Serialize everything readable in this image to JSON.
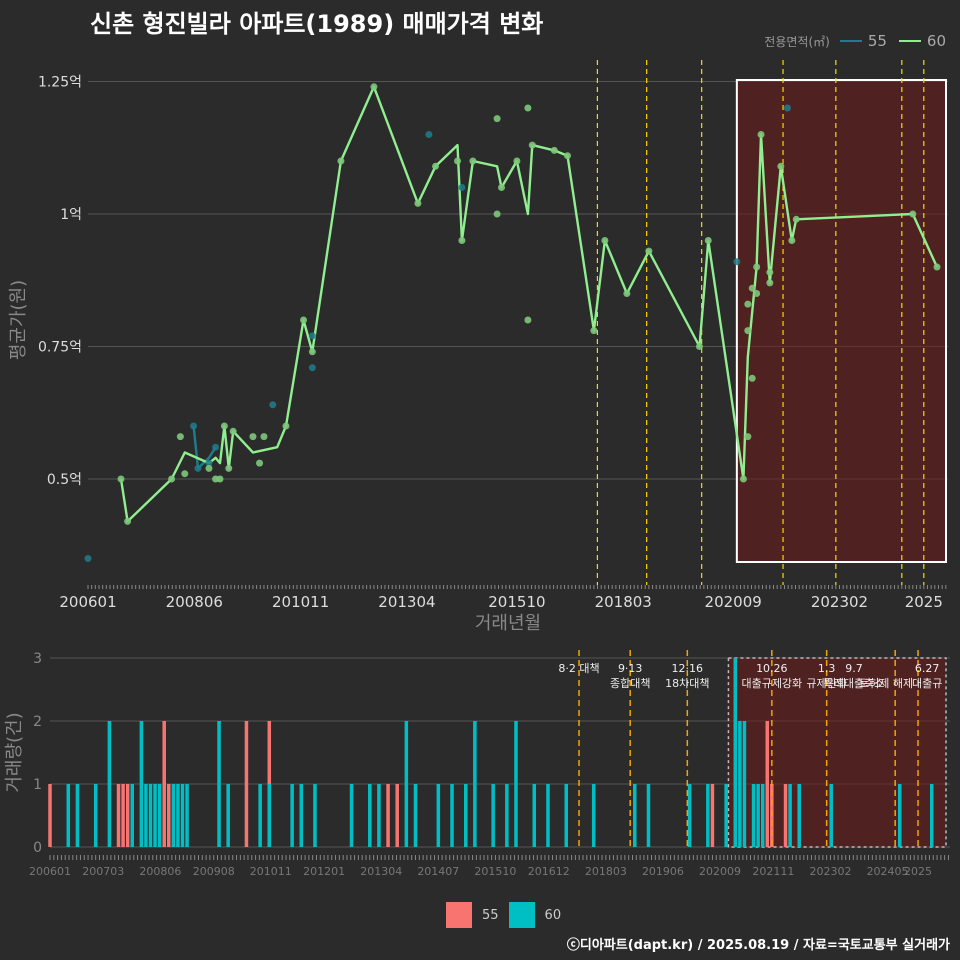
{
  "title": "신촌 형진빌라 아파트(1989) 매매가격 변화",
  "caption": "ⓒ디아파트(dapt.kr) / 2025.08.19 / 자료=국토교통부 실거래가",
  "colors": {
    "s55_line": "#1e7d8c",
    "s60_line": "#90ee90",
    "s55_bar": "#f87471",
    "s60_bar": "#00bfc4",
    "policy": "#ffd700",
    "policy_bar": "#f0a500"
  },
  "chart_data": [
    {
      "type": "line",
      "title": "신촌 형진빌라 아파트(1989) 매매가격 변화",
      "xlabel": "거래년월",
      "ylabel": "평균가(원)",
      "x_ticks": [
        "200601",
        "200806",
        "201011",
        "201304",
        "201510",
        "201803",
        "202009",
        "202302",
        "2025"
      ],
      "y_ticks": [
        {
          "v": 0.5,
          "label": "0.5억"
        },
        {
          "v": 0.75,
          "label": "0.75억"
        },
        {
          "v": 1.0,
          "label": "1억"
        },
        {
          "v": 1.25,
          "label": "1.25억"
        }
      ],
      "ylim": [
        0.3,
        1.3
      ],
      "legend_title": "전용면적(㎡)",
      "legend": [
        "55",
        "60"
      ],
      "series": [
        {
          "name": "55",
          "line": [
            [
              2008.4,
              0.6
            ],
            [
              2008.5,
              0.52
            ],
            [
              2008.75,
              0.54
            ],
            [
              2008.9,
              0.56
            ]
          ],
          "points": [
            [
              2006.0,
              0.35
            ],
            [
              2008.4,
              0.6
            ],
            [
              2008.5,
              0.52
            ],
            [
              2008.75,
              0.53
            ],
            [
              2008.9,
              0.56
            ],
            [
              2010.2,
              0.64
            ],
            [
              2011.1,
              0.71
            ],
            [
              2011.1,
              0.77
            ],
            [
              2013.75,
              1.15
            ],
            [
              2014.5,
              1.05
            ],
            [
              2021.9,
              1.2
            ],
            [
              2020.75,
              0.91
            ]
          ]
        },
        {
          "name": "60",
          "line": [
            [
              2006.75,
              0.5
            ],
            [
              2006.9,
              0.42
            ],
            [
              2007.9,
              0.5
            ],
            [
              2008.2,
              0.55
            ],
            [
              2008.75,
              0.53
            ],
            [
              2008.9,
              0.54
            ],
            [
              2009.0,
              0.53
            ],
            [
              2009.1,
              0.6
            ],
            [
              2009.2,
              0.52
            ],
            [
              2009.3,
              0.59
            ],
            [
              2009.75,
              0.55
            ],
            [
              2010.3,
              0.56
            ],
            [
              2010.5,
              0.6
            ],
            [
              2010.9,
              0.8
            ],
            [
              2011.1,
              0.74
            ],
            [
              2011.75,
              1.1
            ],
            [
              2012.5,
              1.24
            ],
            [
              2013.5,
              1.02
            ],
            [
              2013.9,
              1.09
            ],
            [
              2014.4,
              1.13
            ],
            [
              2014.5,
              0.95
            ],
            [
              2014.75,
              1.1
            ],
            [
              2015.3,
              1.09
            ],
            [
              2015.4,
              1.05
            ],
            [
              2015.75,
              1.1
            ],
            [
              2016.0,
              1.0
            ],
            [
              2016.1,
              1.13
            ],
            [
              2016.6,
              1.12
            ],
            [
              2016.9,
              1.11
            ],
            [
              2017.5,
              0.78
            ],
            [
              2017.75,
              0.95
            ],
            [
              2018.25,
              0.85
            ],
            [
              2018.75,
              0.93
            ],
            [
              2019.9,
              0.75
            ],
            [
              2020.1,
              0.95
            ],
            [
              2020.9,
              0.5
            ],
            [
              2021.0,
              0.73
            ],
            [
              2021.2,
              0.9
            ],
            [
              2021.3,
              1.15
            ],
            [
              2021.5,
              0.87
            ],
            [
              2021.75,
              1.09
            ],
            [
              2022.0,
              0.95
            ],
            [
              2022.1,
              0.99
            ],
            [
              2024.75,
              1.0
            ],
            [
              2025.3,
              0.9
            ]
          ],
          "points": [
            [
              2006.75,
              0.5
            ],
            [
              2006.9,
              0.42
            ],
            [
              2007.9,
              0.5
            ],
            [
              2008.1,
              0.58
            ],
            [
              2008.2,
              0.51
            ],
            [
              2008.75,
              0.52
            ],
            [
              2008.9,
              0.5
            ],
            [
              2009.0,
              0.5
            ],
            [
              2009.1,
              0.6
            ],
            [
              2009.2,
              0.52
            ],
            [
              2009.3,
              0.59
            ],
            [
              2009.75,
              0.58
            ],
            [
              2009.9,
              0.53
            ],
            [
              2010.0,
              0.58
            ],
            [
              2010.5,
              0.6
            ],
            [
              2010.9,
              0.8
            ],
            [
              2011.1,
              0.74
            ],
            [
              2011.75,
              1.1
            ],
            [
              2012.5,
              1.24
            ],
            [
              2013.5,
              1.02
            ],
            [
              2013.9,
              1.09
            ],
            [
              2014.4,
              1.1
            ],
            [
              2014.5,
              0.95
            ],
            [
              2014.75,
              1.1
            ],
            [
              2015.3,
              1.18
            ],
            [
              2015.3,
              1.0
            ],
            [
              2015.4,
              1.05
            ],
            [
              2015.75,
              1.1
            ],
            [
              2016.0,
              1.2
            ],
            [
              2016.0,
              0.8
            ],
            [
              2016.1,
              1.13
            ],
            [
              2016.6,
              1.12
            ],
            [
              2016.9,
              1.11
            ],
            [
              2017.5,
              0.78
            ],
            [
              2017.75,
              0.95
            ],
            [
              2018.25,
              0.85
            ],
            [
              2018.75,
              0.93
            ],
            [
              2019.9,
              0.75
            ],
            [
              2020.1,
              0.95
            ],
            [
              2020.9,
              0.5
            ],
            [
              2021.0,
              0.58
            ],
            [
              2021.0,
              0.78
            ],
            [
              2021.0,
              0.83
            ],
            [
              2021.1,
              0.86
            ],
            [
              2021.1,
              0.69
            ],
            [
              2021.2,
              0.85
            ],
            [
              2021.2,
              0.9
            ],
            [
              2021.3,
              1.15
            ],
            [
              2021.5,
              0.87
            ],
            [
              2021.5,
              0.89
            ],
            [
              2021.75,
              1.09
            ],
            [
              2022.0,
              0.95
            ],
            [
              2022.1,
              0.99
            ],
            [
              2024.75,
              1.0
            ],
            [
              2025.3,
              0.9
            ]
          ]
        }
      ],
      "policy_lines": [
        2017.58,
        2018.7,
        2019.95,
        2021.8,
        2023.0,
        2024.5,
        2025.0
      ]
    },
    {
      "type": "bar",
      "ylabel": "거래량(건)",
      "x_ticks": [
        "200601",
        "200703",
        "200806",
        "200908",
        "201011",
        "201201",
        "201304",
        "201407",
        "201510",
        "201612",
        "201803",
        "201906",
        "202009",
        "202111",
        "202302",
        "202405",
        "2025"
      ],
      "y_ticks": [
        0,
        1,
        2,
        3
      ],
      "ylim": [
        0,
        3
      ],
      "legend": [
        "55",
        "60"
      ],
      "bars_55": [
        [
          2006.0,
          1
        ],
        [
          2007.5,
          1
        ],
        [
          2007.6,
          1
        ],
        [
          2007.7,
          1
        ],
        [
          2008.5,
          2
        ],
        [
          2008.6,
          1
        ],
        [
          2010.3,
          2
        ],
        [
          2010.8,
          2
        ],
        [
          2013.4,
          1
        ],
        [
          2013.6,
          1
        ],
        [
          2020.5,
          1
        ],
        [
          2021.7,
          2
        ],
        [
          2021.8,
          1
        ],
        [
          2022.1,
          1
        ]
      ],
      "bars_60": [
        [
          2006.4,
          1
        ],
        [
          2006.6,
          1
        ],
        [
          2007.0,
          1
        ],
        [
          2007.3,
          2
        ],
        [
          2007.8,
          1
        ],
        [
          2008.0,
          2
        ],
        [
          2008.1,
          1
        ],
        [
          2008.2,
          1
        ],
        [
          2008.3,
          1
        ],
        [
          2008.4,
          1
        ],
        [
          2008.7,
          1
        ],
        [
          2008.8,
          1
        ],
        [
          2008.9,
          1
        ],
        [
          2009.0,
          1
        ],
        [
          2009.7,
          2
        ],
        [
          2009.9,
          1
        ],
        [
          2010.6,
          1
        ],
        [
          2010.8,
          1
        ],
        [
          2011.3,
          1
        ],
        [
          2011.5,
          1
        ],
        [
          2011.8,
          1
        ],
        [
          2012.6,
          1
        ],
        [
          2013.0,
          1
        ],
        [
          2013.2,
          1
        ],
        [
          2013.8,
          2
        ],
        [
          2014.0,
          1
        ],
        [
          2014.5,
          1
        ],
        [
          2014.8,
          1
        ],
        [
          2015.1,
          1
        ],
        [
          2015.3,
          2
        ],
        [
          2015.7,
          1
        ],
        [
          2016.0,
          1
        ],
        [
          2016.2,
          2
        ],
        [
          2016.6,
          1
        ],
        [
          2016.9,
          1
        ],
        [
          2017.3,
          1
        ],
        [
          2017.9,
          1
        ],
        [
          2018.8,
          1
        ],
        [
          2019.1,
          1
        ],
        [
          2020.0,
          1
        ],
        [
          2020.4,
          1
        ],
        [
          2020.8,
          1
        ],
        [
          2021.0,
          3
        ],
        [
          2021.1,
          2
        ],
        [
          2021.2,
          2
        ],
        [
          2021.4,
          1
        ],
        [
          2021.5,
          1
        ],
        [
          2021.6,
          1
        ],
        [
          2022.2,
          1
        ],
        [
          2022.4,
          1
        ],
        [
          2023.1,
          1
        ],
        [
          2024.6,
          1
        ],
        [
          2025.3,
          1
        ]
      ],
      "policy_lines": [
        2017.58,
        2018.7,
        2019.95,
        2021.8,
        2023.0,
        2024.5,
        2025.0
      ],
      "policy_labels": [
        {
          "x": 2017.58,
          "lines": [
            "8·2 대책"
          ]
        },
        {
          "x": 2018.7,
          "lines": [
            "9·13",
            "종합대책"
          ]
        },
        {
          "x": 2019.95,
          "lines": [
            "12·16",
            "18차대책"
          ]
        },
        {
          "x": 2021.8,
          "lines": [
            "10.26",
            "대출규제강화"
          ]
        },
        {
          "x": 2023.0,
          "lines": [
            "1.3",
            "규제완화"
          ]
        },
        {
          "x": 2023.6,
          "lines": [
            "9.7",
            "특례대출축소"
          ]
        },
        {
          "x": 2024.3,
          "lines": [
            "",
            "토허제 해제"
          ]
        },
        {
          "x": 2025.2,
          "lines": [
            "6.27",
            "대출규"
          ]
        }
      ]
    }
  ]
}
